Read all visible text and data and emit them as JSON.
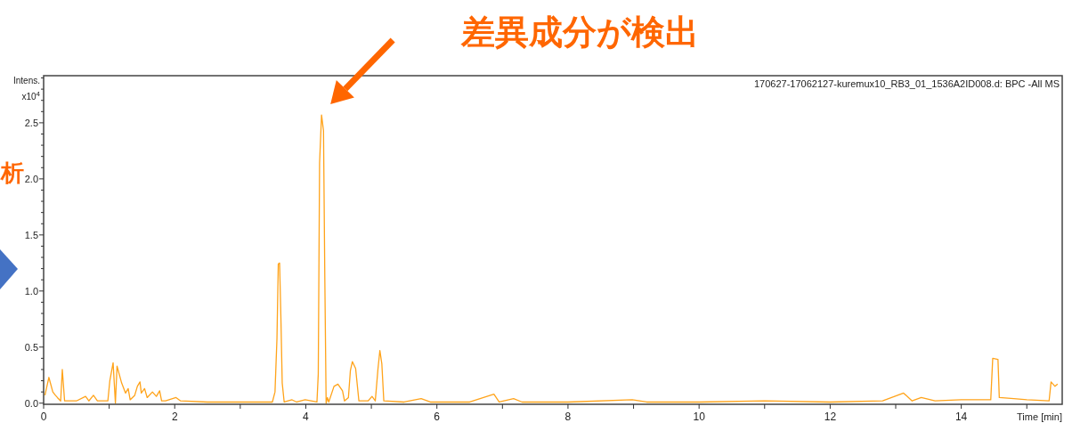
{
  "chart_data": {
    "type": "line",
    "xlabel": "Time [min]",
    "ylabel": "Intens. x10$^{4}$",
    "annotations": [
      "差異成分が検出",
      "170627-17062127-kuremux10_RB3_01_1536A2ID008.d: BPC -All MS",
      "析"
    ],
    "xlim": [
      0,
      15.54
    ],
    "ylim": [
      -0.01,
      2.92
    ],
    "xticks": [
      0,
      {
        "value": 1,
        "label": null
      },
      2,
      {
        "value": 3,
        "label": null
      },
      4,
      {
        "value": 5,
        "label": null
      },
      6,
      {
        "value": 7,
        "label": null
      },
      8,
      {
        "value": 9,
        "label": null
      },
      10,
      {
        "value": 11,
        "label": null
      },
      12,
      {
        "value": 13,
        "label": null
      },
      14,
      {
        "value": 15,
        "label": null
      }
    ],
    "yticks": [
      {
        "value": 0,
        "label": "0.0"
      },
      {
        "value": 0.1,
        "label": null
      },
      {
        "value": 0.2,
        "label": null
      },
      {
        "value": 0.3,
        "label": null
      },
      {
        "value": 0.4,
        "label": null
      },
      {
        "value": 0.5,
        "label": "0.5"
      },
      {
        "value": 0.6,
        "label": null
      },
      {
        "value": 0.7,
        "label": null
      },
      {
        "value": 0.8,
        "label": null
      },
      {
        "value": 0.9,
        "label": null
      },
      {
        "value": 1,
        "label": "1.0"
      },
      {
        "value": 1.1,
        "label": null
      },
      {
        "value": 1.2,
        "label": null
      },
      {
        "value": 1.3,
        "label": null
      },
      {
        "value": 1.4,
        "label": null
      },
      {
        "value": 1.5,
        "label": "1.5"
      },
      {
        "value": 1.6,
        "label": null
      },
      {
        "value": 1.7,
        "label": null
      },
      {
        "value": 1.8,
        "label": null
      },
      {
        "value": 1.9,
        "label": null
      },
      {
        "value": 2,
        "label": "2.0"
      },
      {
        "value": 2.1,
        "label": null
      },
      {
        "value": 2.2,
        "label": null
      },
      {
        "value": 2.3,
        "label": null
      },
      {
        "value": 2.4,
        "label": null
      },
      {
        "value": 2.5,
        "label": "2.5"
      },
      {
        "value": 2.6,
        "label": null
      },
      {
        "value": 2.7,
        "label": null
      },
      {
        "value": 2.8,
        "label": null
      },
      {
        "value": 2.9,
        "label": null
      }
    ],
    "grid": false,
    "series": [
      {
        "color": "#ffa31a",
        "x": [
          0.02,
          0.08,
          0.14,
          0.18,
          0.21,
          0.26,
          0.285,
          0.32,
          0.5,
          0.64,
          0.69,
          0.76,
          0.82,
          0.98,
          1.01,
          1.06,
          1.095,
          1.12,
          1.19,
          1.25,
          1.29,
          1.32,
          1.39,
          1.43,
          1.47,
          1.49,
          1.54,
          1.58,
          1.66,
          1.72,
          1.77,
          1.8,
          1.86,
          2.02,
          2.09,
          2.5,
          3.0,
          3.49,
          3.53,
          3.56,
          3.58,
          3.6,
          3.62,
          3.64,
          3.67,
          3.79,
          3.86,
          3.99,
          4.17,
          4.19,
          4.21,
          4.24,
          4.27,
          4.29,
          4.31,
          4.33,
          4.35,
          4.43,
          4.49,
          4.56,
          4.59,
          4.65,
          4.68,
          4.71,
          4.76,
          4.81,
          4.95,
          5.01,
          5.06,
          5.1,
          5.13,
          5.16,
          5.19,
          5.5,
          5.76,
          5.9,
          6.5,
          6.87,
          6.95,
          7.17,
          7.3,
          8.0,
          8.98,
          9.2,
          10.0,
          11.0,
          12.0,
          12.8,
          13.12,
          13.25,
          13.39,
          13.6,
          14.0,
          14.45,
          14.48,
          14.56,
          14.58,
          14.8,
          15.0,
          15.34,
          15.37,
          15.43,
          15.47
        ],
        "values": [
          0.07,
          0.23,
          0.1,
          0.07,
          0.05,
          0.02,
          0.3,
          0.02,
          0.02,
          0.06,
          0.02,
          0.07,
          0.02,
          0.02,
          0.2,
          0.36,
          0.0,
          0.33,
          0.18,
          0.09,
          0.13,
          0.03,
          0.07,
          0.15,
          0.19,
          0.09,
          0.13,
          0.05,
          0.1,
          0.06,
          0.11,
          0.02,
          0.02,
          0.05,
          0.02,
          0.01,
          0.01,
          0.01,
          0.1,
          0.58,
          1.24,
          1.25,
          0.76,
          0.18,
          0.01,
          0.03,
          0.01,
          0.03,
          0.01,
          0.26,
          2.14,
          2.57,
          2.43,
          1.11,
          0.0,
          0.05,
          0.01,
          0.15,
          0.17,
          0.11,
          0.02,
          0.05,
          0.29,
          0.37,
          0.31,
          0.02,
          0.02,
          0.06,
          0.02,
          0.3,
          0.47,
          0.35,
          0.02,
          0.01,
          0.04,
          0.01,
          0.01,
          0.08,
          0.01,
          0.04,
          0.01,
          0.01,
          0.03,
          0.01,
          0.01,
          0.02,
          0.01,
          0.02,
          0.09,
          0.02,
          0.05,
          0.02,
          0.03,
          0.03,
          0.4,
          0.39,
          0.05,
          0.04,
          0.03,
          0.02,
          0.19,
          0.15,
          0.17
        ]
      }
    ]
  }
}
